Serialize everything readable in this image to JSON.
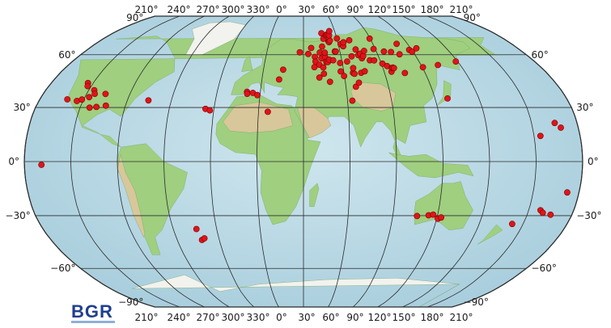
{
  "map": {
    "projection": "Robinson",
    "logo": "BGR",
    "top_lon_labels": [
      "210°",
      "240°",
      "270°",
      "300°",
      "330°",
      "0°",
      "30°",
      "60°",
      "90°",
      "120°",
      "150°",
      "180°",
      "210°"
    ],
    "bottom_lon_labels": [
      "210°",
      "240°",
      "270°",
      "300°",
      "330°",
      "0°",
      "30°",
      "60°",
      "90°",
      "120°",
      "150°",
      "180°",
      "210°"
    ],
    "lat_labels_left": [
      "90°",
      "60°",
      "30°",
      "0°",
      "−30°",
      "−60°",
      "−90°"
    ],
    "lat_labels_right": [
      "90°",
      "60°",
      "30°",
      "0°",
      "−30°",
      "−60°",
      "−90°"
    ],
    "colors": {
      "ocean": "#bcd9e6",
      "lowland": "#9fcf7f",
      "highland": "#d8c79a",
      "ice": "#f2f2ee",
      "station": "#e0141a",
      "station_outline": "#7a0000"
    },
    "stations": [
      [
        0.8,
        38.7
      ],
      [
        1.0,
        37.6
      ],
      [
        4.9,
        38.1
      ],
      [
        8.2,
        36.9
      ],
      [
        16.2,
        27.6
      ],
      [
        22.4,
        45.6
      ],
      [
        24.8,
        51.2
      ],
      [
        37.0,
        61.5
      ],
      [
        43.9,
        60.5
      ],
      [
        46.5,
        64.2
      ],
      [
        48.3,
        52.7
      ],
      [
        49.1,
        58.7
      ],
      [
        49.4,
        55.9
      ],
      [
        51.6,
        46.7
      ],
      [
        52.2,
        54.1
      ],
      [
        53.4,
        61.4
      ],
      [
        54.2,
        57.8
      ],
      [
        55.0,
        52.5
      ],
      [
        55.1,
        48.8
      ],
      [
        55.8,
        65.1
      ],
      [
        56.9,
        73.9
      ],
      [
        57.2,
        58.7
      ],
      [
        57.4,
        61.3
      ],
      [
        57.7,
        55.7
      ],
      [
        57.9,
        70.1
      ],
      [
        58.9,
        55.6
      ],
      [
        59.0,
        44.3
      ],
      [
        60.2,
        57.1
      ],
      [
        60.7,
        72.4
      ],
      [
        61.4,
        72.9
      ],
      [
        62.0,
        68.3
      ],
      [
        62.3,
        67.9
      ],
      [
        62.8,
        73.1
      ],
      [
        63.3,
        56.7
      ],
      [
        63.4,
        68.9
      ],
      [
        63.7,
        72.5
      ],
      [
        64.8,
        75.4
      ],
      [
        65.8,
        62.1
      ],
      [
        66.6,
        62.0
      ],
      [
        67.7,
        50.2
      ],
      [
        68.3,
        55.1
      ],
      [
        69.7,
        47.6
      ],
      [
        70.1,
        70.3
      ],
      [
        72.1,
        66.6
      ],
      [
        73.3,
        33.8
      ],
      [
        73.8,
        65.3
      ],
      [
        74.0,
        56.0
      ],
      [
        74.9,
        67.8
      ],
      [
        76.6,
        49.4
      ],
      [
        77.0,
        41.5
      ],
      [
        77.5,
        52.1
      ],
      [
        77.6,
        48.8
      ],
      [
        78.5,
        59.0
      ],
      [
        79.6,
        43.8
      ],
      [
        80.6,
        69.1
      ],
      [
        82.7,
        49.4
      ],
      [
        83.5,
        63.3
      ],
      [
        84.2,
        59.8
      ],
      [
        85.6,
        50.3
      ],
      [
        86.2,
        60.7
      ],
      [
        86.3,
        57.9
      ],
      [
        87.8,
        59.2
      ],
      [
        90.1,
        62.4
      ],
      [
        92.0,
        56.7
      ],
      [
        95.3,
        56.6
      ],
      [
        98.6,
        63.6
      ],
      [
        99.5,
        70.2
      ],
      [
        100.8,
        54.7
      ],
      [
        103.7,
        53.3
      ],
      [
        105.4,
        50.0
      ],
      [
        106.2,
        62.0
      ],
      [
        106.7,
        52.2
      ],
      [
        107.6,
        52.4
      ],
      [
        108.3,
        52.1
      ],
      [
        111.8,
        61.7
      ],
      [
        115.0,
        49.3
      ],
      [
        117.8,
        60.3
      ],
      [
        120.6,
        66.8
      ],
      [
        127.9,
        63.0
      ],
      [
        129.4,
        61.9
      ],
      [
        130.5,
        52.6
      ],
      [
        134.8,
        64.0
      ],
      [
        138.5,
        35.0
      ],
      [
        142.9,
        53.9
      ],
      [
        158.6,
        56.0
      ],
      [
        194.2,
        14.2
      ],
      [
        208.6,
        18.8
      ],
      [
        231.0,
        -1.8
      ],
      [
        205.3,
        21.4
      ],
      [
        182.5,
        -34.6
      ],
      [
        197.9,
        -27.0
      ],
      [
        200.0,
        -28.4
      ],
      [
        205.7,
        -29.5
      ],
      [
        212.3,
        -17.1
      ],
      [
        246.2,
        43.6
      ],
      [
        247.4,
        41.9
      ],
      [
        253.0,
        35.7
      ],
      [
        253.9,
        39.6
      ],
      [
        255.6,
        37.6
      ],
      [
        260.8,
        30.3
      ],
      [
        238.8,
        34.5
      ],
      [
        245.8,
        33.6
      ],
      [
        248.8,
        34.4
      ],
      [
        256.4,
        29.9
      ],
      [
        263.1,
        37.5
      ],
      [
        266.8,
        31.0
      ],
      [
        294.4,
        33.9
      ],
      [
        326.0,
        -37.4
      ],
      [
        327.6,
        -43.5
      ],
      [
        329.7,
        -42.6
      ],
      [
        334.3,
        29.2
      ],
      [
        337.4,
        28.4
      ],
      [
        116.3,
        -30.2
      ],
      [
        124.0,
        -29.8
      ],
      [
        127.0,
        -29.4
      ],
      [
        130.8,
        -31.7
      ],
      [
        132.8,
        -31.0
      ]
    ]
  }
}
